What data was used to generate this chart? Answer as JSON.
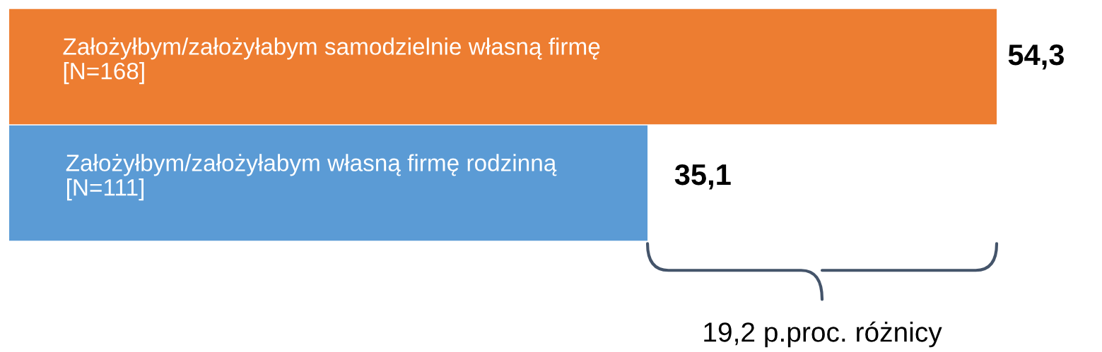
{
  "chart_data": {
    "type": "bar",
    "orientation": "horizontal",
    "categories": [
      "Założyłbym/założyłabym samodzielnie własną firmę\n[N=168]",
      "Założyłbym/założyłabym własną firmę rodzinną\n[N=111]"
    ],
    "values": [
      54.3,
      35.1
    ],
    "colors": [
      "#ed7d31",
      "#5b9bd5"
    ],
    "data_labels": true,
    "value_labels": [
      "54,3",
      "35,1"
    ],
    "annotations": [
      "19,2 p.proc. różnicy"
    ]
  }
}
